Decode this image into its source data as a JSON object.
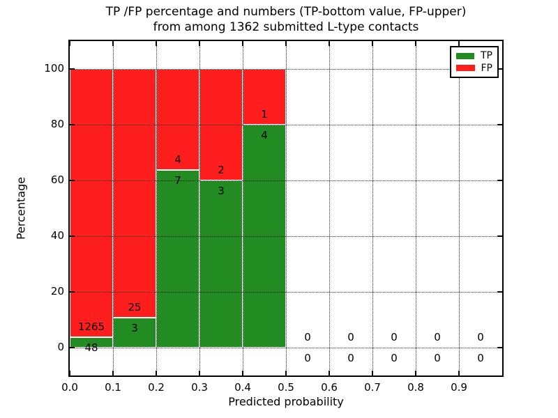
{
  "figure": {
    "title_line1": "TP /FP percentage and numbers (TP-bottom value, FP-upper)",
    "title_line2": "from among 1362 submitted L-type contacts"
  },
  "axes": {
    "xlabel": "Predicted probability",
    "ylabel": "Percentage"
  },
  "legend": {
    "position": "upper right",
    "items": [
      {
        "label": "TP",
        "color": "#228b22"
      },
      {
        "label": "FP",
        "color": "#ff1e1e"
      }
    ]
  },
  "chart_data": {
    "type": "bar",
    "stacked": true,
    "normalized": "percent_of_bin_total",
    "title": "TP /FP percentage and numbers (TP-bottom value, FP-upper) from among 1362 submitted L-type contacts",
    "xlabel": "Predicted probability",
    "ylabel": "Percentage",
    "xlim": [
      0.0,
      1.0
    ],
    "ylim": [
      -10,
      110
    ],
    "grid": "dotted",
    "legend_position": "upper right",
    "total_contacts": 1362,
    "bin_edges": [
      0.0,
      0.1,
      0.2,
      0.3,
      0.4,
      0.5,
      0.6,
      0.7,
      0.8,
      0.9,
      1.0
    ],
    "x_ticks": [
      0.0,
      0.1,
      0.2,
      0.3,
      0.4,
      0.5,
      0.6,
      0.7,
      0.8,
      0.9
    ],
    "x_tick_labels": [
      "0.0",
      "0.1",
      "0.2",
      "0.3",
      "0.4",
      "0.5",
      "0.6",
      "0.7",
      "0.8",
      "0.9"
    ],
    "y_ticks": [
      0,
      20,
      40,
      60,
      80,
      100
    ],
    "y_tick_labels": [
      "0",
      "20",
      "40",
      "60",
      "80",
      "100"
    ],
    "series": [
      {
        "name": "TP",
        "color": "#228b22",
        "counts": [
          48,
          3,
          7,
          3,
          4,
          0,
          0,
          0,
          0,
          0
        ]
      },
      {
        "name": "FP",
        "color": "#ff1e1e",
        "counts": [
          1265,
          25,
          4,
          2,
          1,
          0,
          0,
          0,
          0,
          0
        ]
      }
    ],
    "tp_percent_by_bin": [
      3.66,
      10.71,
      63.64,
      60.0,
      80.0,
      0,
      0,
      0,
      0,
      0
    ]
  }
}
